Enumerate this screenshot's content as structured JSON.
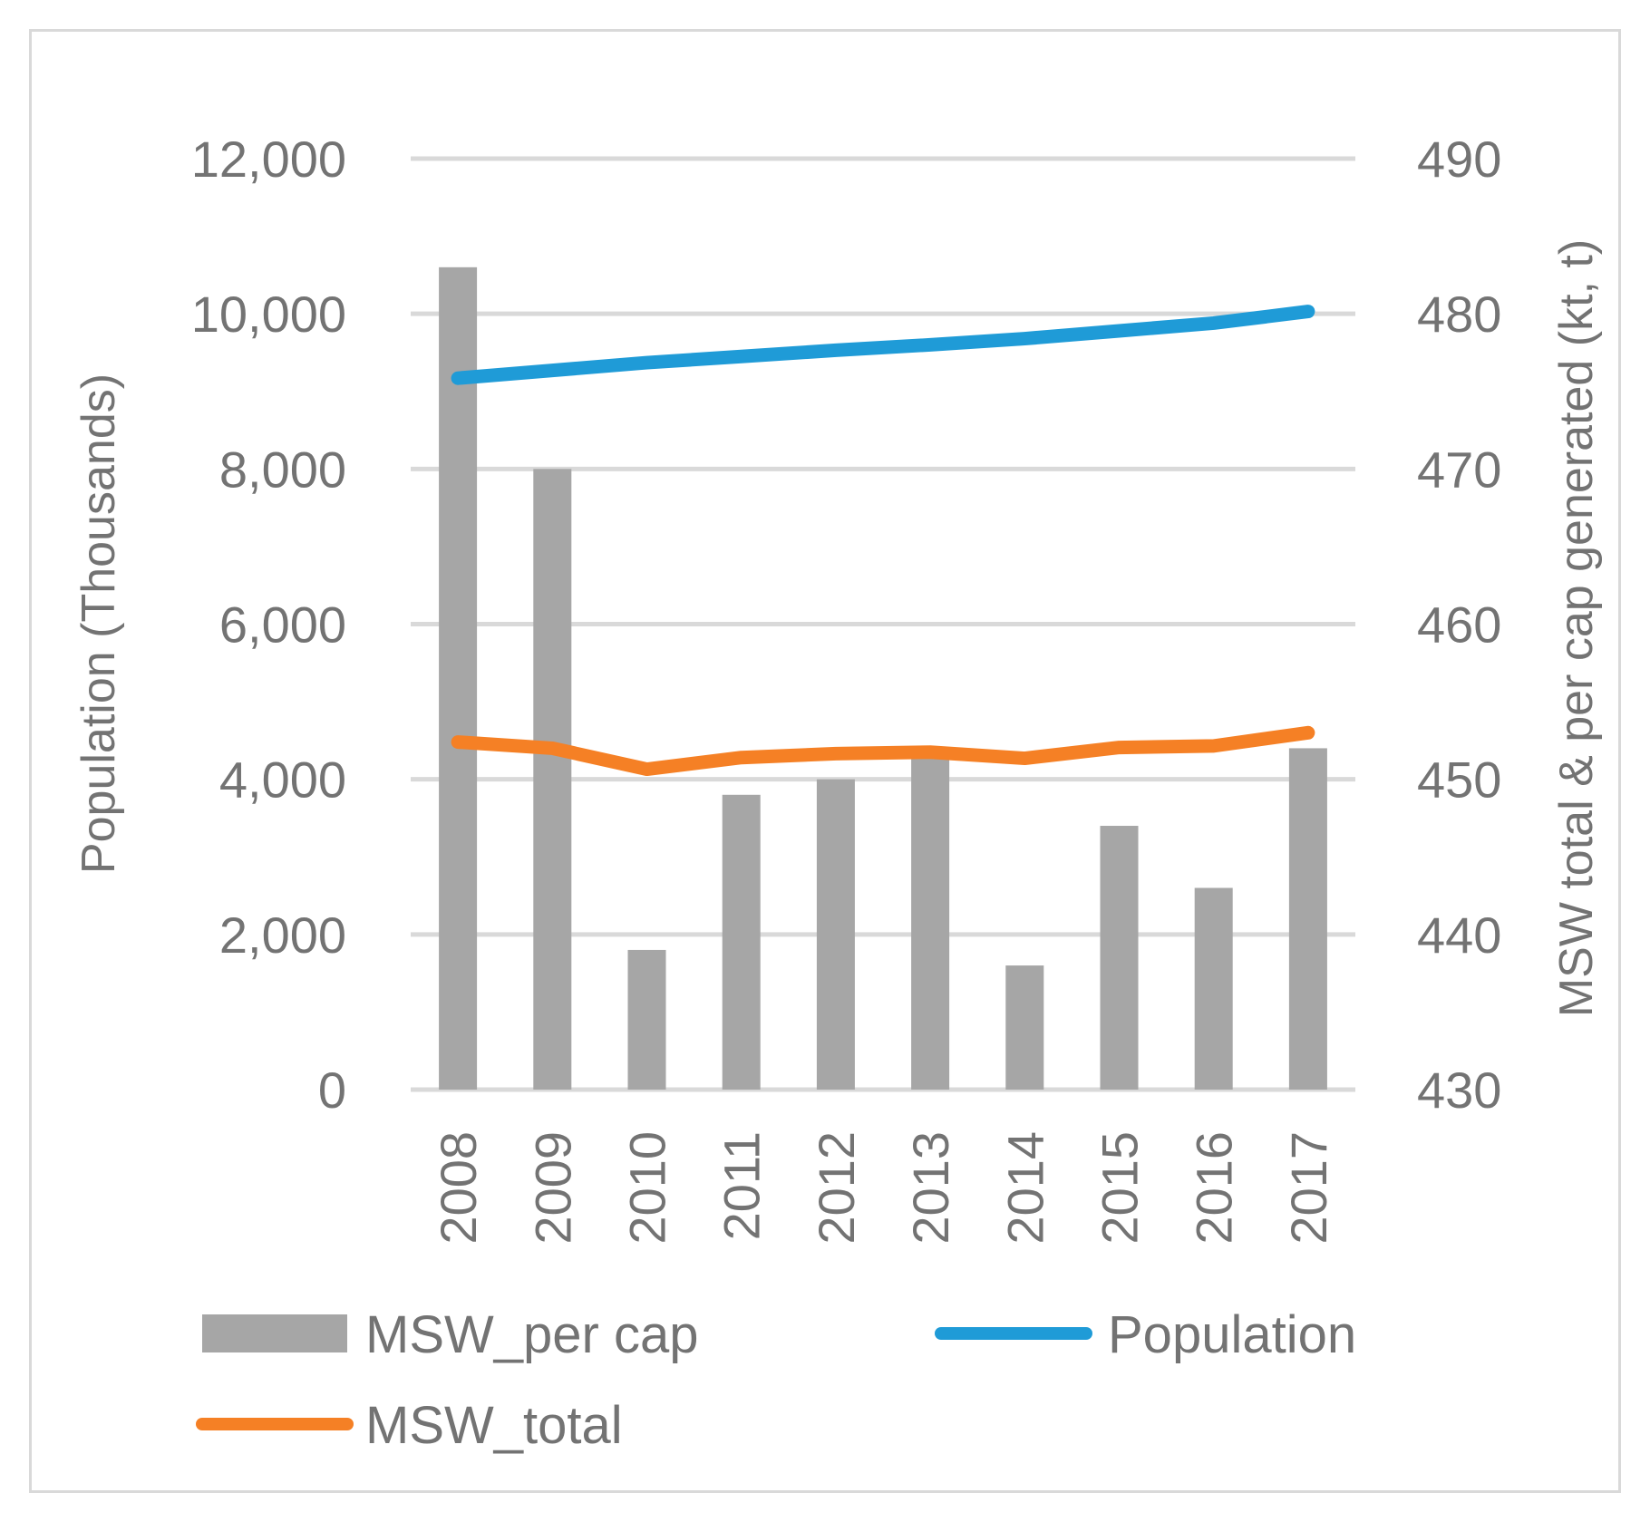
{
  "chart_data": {
    "type": "bar",
    "categories": [
      "2008",
      "2009",
      "2010",
      "2011",
      "2012",
      "2013",
      "2014",
      "2015",
      "2016",
      "2017"
    ],
    "y_left": {
      "label": "Population (Thousands)",
      "range": [
        0,
        12000
      ],
      "ticks": [
        0,
        2000,
        4000,
        6000,
        8000,
        10000,
        12000
      ],
      "tick_labels": [
        "0",
        "2,000",
        "4,000",
        "6,000",
        "8,000",
        "10,000",
        "12,000"
      ]
    },
    "y_right": {
      "label": "MSW total & per cap generated (kt, t)",
      "range": [
        430,
        490
      ],
      "ticks": [
        430,
        440,
        450,
        460,
        470,
        480,
        490
      ],
      "tick_labels": [
        "430",
        "440",
        "450",
        "460",
        "470",
        "480",
        "490"
      ]
    },
    "series": [
      {
        "name": "MSW_per cap",
        "type": "bar",
        "axis": "right",
        "color": "#a6a6a6",
        "values": [
          483,
          470,
          439,
          449,
          450,
          451.5,
          438,
          447,
          443,
          452
        ]
      },
      {
        "name": "Population",
        "type": "line",
        "axis": "left",
        "color": "#1f9bd7",
        "values": [
          9170,
          9270,
          9370,
          9450,
          9530,
          9600,
          9680,
          9780,
          9880,
          10030
        ]
      },
      {
        "name": "MSW_total",
        "type": "line",
        "axis": "left",
        "color": "#f58025",
        "values": [
          4480,
          4400,
          4130,
          4280,
          4330,
          4350,
          4270,
          4410,
          4430,
          4600
        ]
      }
    ],
    "grid": true,
    "legend_position": "bottom"
  }
}
